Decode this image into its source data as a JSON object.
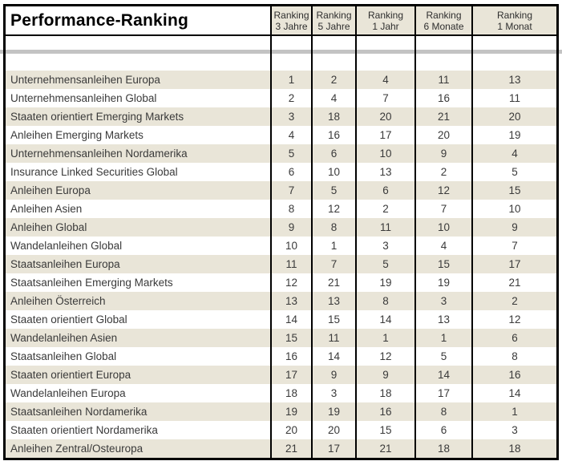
{
  "title": "Performance-Ranking",
  "columns": [
    {
      "line1": "Ranking",
      "line2": "3 Jahre"
    },
    {
      "line1": "Ranking",
      "line2": "5 Jahre"
    },
    {
      "line1": "Ranking",
      "line2": "1 Jahr"
    },
    {
      "line1": "Ranking",
      "line2": "6 Monate"
    },
    {
      "line1": "Ranking",
      "line2": "1 Monat"
    }
  ],
  "rows": [
    {
      "label": "Unternehmensanleihen Europa",
      "values": [
        "1",
        "2",
        "4",
        "11",
        "13"
      ]
    },
    {
      "label": "Unternehmensanleihen Global",
      "values": [
        "2",
        "4",
        "7",
        "16",
        "11"
      ]
    },
    {
      "label": "Staaten orientiert Emerging Markets",
      "values": [
        "3",
        "18",
        "20",
        "21",
        "20"
      ]
    },
    {
      "label": "Anleihen Emerging Markets",
      "values": [
        "4",
        "16",
        "17",
        "20",
        "19"
      ]
    },
    {
      "label": "Unternehmensanleihen Nordamerika",
      "values": [
        "5",
        "6",
        "10",
        "9",
        "4"
      ]
    },
    {
      "label": "Insurance Linked Securities Global",
      "values": [
        "6",
        "10",
        "13",
        "2",
        "5"
      ]
    },
    {
      "label": "Anleihen Europa",
      "values": [
        "7",
        "5",
        "6",
        "12",
        "15"
      ]
    },
    {
      "label": "Anleihen Asien",
      "values": [
        "8",
        "12",
        "2",
        "7",
        "10"
      ]
    },
    {
      "label": "Anleihen Global",
      "values": [
        "9",
        "8",
        "11",
        "10",
        "9"
      ]
    },
    {
      "label": "Wandelanleihen Global",
      "values": [
        "10",
        "1",
        "3",
        "4",
        "7"
      ]
    },
    {
      "label": "Staatsanleihen Europa",
      "values": [
        "11",
        "7",
        "5",
        "15",
        "17"
      ]
    },
    {
      "label": "Staatsanleihen Emerging Markets",
      "values": [
        "12",
        "21",
        "19",
        "19",
        "21"
      ]
    },
    {
      "label": "Anleihen Österreich",
      "values": [
        "13",
        "13",
        "8",
        "3",
        "2"
      ]
    },
    {
      "label": "Staaten orientiert Global",
      "values": [
        "14",
        "15",
        "14",
        "13",
        "12"
      ]
    },
    {
      "label": "Wandelanleihen Asien",
      "values": [
        "15",
        "11",
        "1",
        "1",
        "6"
      ]
    },
    {
      "label": "Staatsanleihen Global",
      "values": [
        "16",
        "14",
        "12",
        "5",
        "8"
      ]
    },
    {
      "label": "Staaten orientiert Europa",
      "values": [
        "17",
        "9",
        "9",
        "14",
        "16"
      ]
    },
    {
      "label": "Wandelanleihen Europa",
      "values": [
        "18",
        "3",
        "18",
        "17",
        "14"
      ]
    },
    {
      "label": "Staatsanleihen Nordamerika",
      "values": [
        "19",
        "19",
        "16",
        "8",
        "1"
      ]
    },
    {
      "label": "Staaten orientiert Nordamerika",
      "values": [
        "20",
        "20",
        "15",
        "6",
        "3"
      ]
    },
    {
      "label": "Anleihen Zentral/Osteuropa",
      "values": [
        "21",
        "17",
        "21",
        "18",
        "18"
      ]
    }
  ],
  "colors": {
    "row_highlight": "#e9e5d8",
    "header_background": "#e9e5d8",
    "border": "#000000",
    "separator_gray": "#c3c3c3",
    "text": "#3a3a3a"
  }
}
